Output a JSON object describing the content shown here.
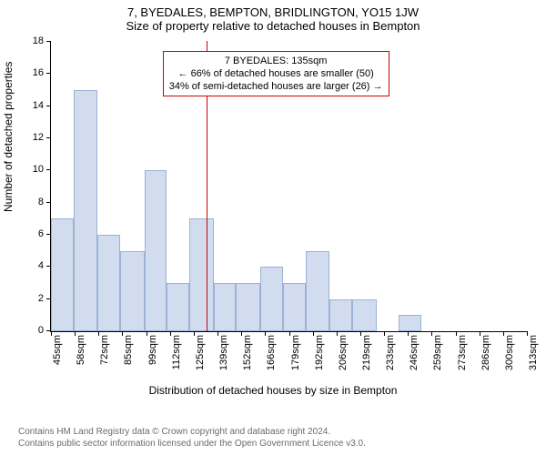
{
  "chart": {
    "type": "histogram",
    "title_line1": "7, BYEDALES, BEMPTON, BRIDLINGTON, YO15 1JW",
    "title_line2": "Size of property relative to detached houses in Bempton",
    "title_fontsize": 13,
    "title_color": "#000000",
    "xlabel": "Distribution of detached houses by size in Bempton",
    "ylabel": "Number of detached properties",
    "label_fontsize": 12,
    "background_color": "#ffffff",
    "axis_color": "#000000",
    "bar_fill": "#d1dcef",
    "bar_stroke": "#9cb1d6",
    "bar_stroke_width": 1,
    "xlim": [
      45,
      320
    ],
    "ylim": [
      0,
      18
    ],
    "ytick_step": 2,
    "yticks": [
      0,
      2,
      4,
      6,
      8,
      10,
      12,
      14,
      16,
      18
    ],
    "xtick_labels": [
      "45sqm",
      "58sqm",
      "72sqm",
      "85sqm",
      "99sqm",
      "112sqm",
      "125sqm",
      "139sqm",
      "152sqm",
      "166sqm",
      "179sqm",
      "192sqm",
      "206sqm",
      "219sqm",
      "233sqm",
      "246sqm",
      "259sqm",
      "273sqm",
      "286sqm",
      "300sqm",
      "313sqm"
    ],
    "tick_fontsize": 11,
    "xtick_rotation": -90,
    "bars": [
      {
        "x0": 45,
        "x1": 58,
        "value": 7
      },
      {
        "x0": 58,
        "x1": 72,
        "value": 15
      },
      {
        "x0": 72,
        "x1": 85,
        "value": 6
      },
      {
        "x0": 85,
        "x1": 99,
        "value": 5
      },
      {
        "x0": 99,
        "x1": 112,
        "value": 10
      },
      {
        "x0": 112,
        "x1": 125,
        "value": 3
      },
      {
        "x0": 125,
        "x1": 139,
        "value": 7
      },
      {
        "x0": 139,
        "x1": 152,
        "value": 3
      },
      {
        "x0": 152,
        "x1": 166,
        "value": 3
      },
      {
        "x0": 166,
        "x1": 179,
        "value": 4
      },
      {
        "x0": 179,
        "x1": 192,
        "value": 3
      },
      {
        "x0": 192,
        "x1": 206,
        "value": 5
      },
      {
        "x0": 206,
        "x1": 219,
        "value": 2
      },
      {
        "x0": 219,
        "x1": 233,
        "value": 2
      },
      {
        "x0": 233,
        "x1": 246,
        "value": 0
      },
      {
        "x0": 246,
        "x1": 259,
        "value": 1
      },
      {
        "x0": 259,
        "x1": 273,
        "value": 0
      },
      {
        "x0": 273,
        "x1": 286,
        "value": 0
      },
      {
        "x0": 286,
        "x1": 300,
        "value": 0
      },
      {
        "x0": 300,
        "x1": 313,
        "value": 0
      },
      {
        "x0": 313,
        "x1": 320,
        "value": 0
      }
    ],
    "reference_line": {
      "x": 135,
      "color": "#cc0000",
      "width": 1
    },
    "annotation": {
      "line1": "7 BYEDALES: 135sqm",
      "line2": "← 66% of detached houses are smaller (50)",
      "line3": "34% of semi-detached houses are larger (26) →",
      "border_color": "#cc0000",
      "border_width": 1,
      "background": "#ffffff",
      "fontsize": 11,
      "x_center": 175,
      "y_top": 17.4
    }
  },
  "footer": {
    "line1": "Contains HM Land Registry data © Crown copyright and database right 2024.",
    "line2": "Contains public sector information licensed under the Open Government Licence v3.0.",
    "color": "#6b6b6b",
    "fontsize": 10
  }
}
